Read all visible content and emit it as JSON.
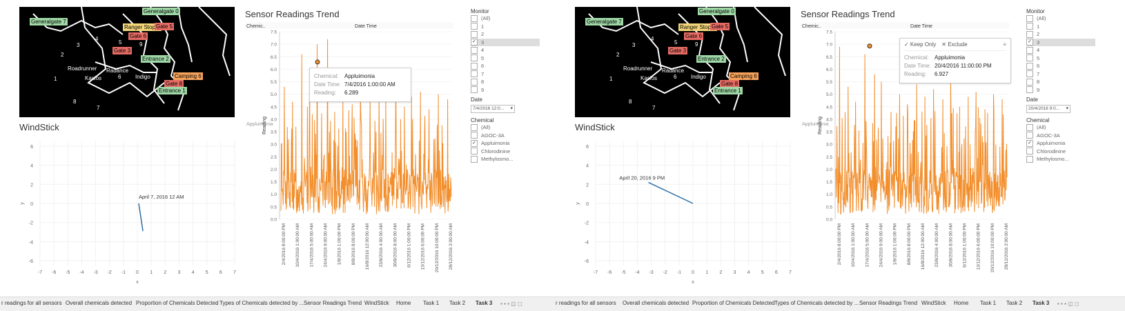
{
  "panes": [
    {
      "id": "L",
      "map": {
        "tags": [
          {
            "text": "Generalgate 7",
            "color": "green"
          },
          {
            "text": "Generalgate 0",
            "color": "green"
          },
          {
            "text": "Ranger Stop 2",
            "color": "yellow"
          },
          {
            "text": "Gate 5",
            "color": "red"
          },
          {
            "text": "Gate 6",
            "color": "red"
          },
          {
            "text": "Gate 3",
            "color": "red"
          },
          {
            "text": "Entrance 2",
            "color": "green"
          },
          {
            "text": "Camping 6",
            "color": "orange"
          },
          {
            "text": "Gate 8",
            "color": "red"
          },
          {
            "text": "Entrance 1",
            "color": "green"
          }
        ],
        "labels": [
          "Roadrunner",
          "Radance",
          "Kasios",
          "Indigo"
        ],
        "sensors": [
          "1",
          "2",
          "3",
          "4",
          "5",
          "6",
          "7",
          "8",
          "9"
        ]
      },
      "windstick": {
        "title": "WindStick",
        "annotation": "April 7, 2016 12 AM",
        "x_ticks": [
          "-7",
          "-6",
          "-5",
          "-4",
          "-3",
          "-2",
          "-1",
          "0",
          "1",
          "2",
          "3",
          "4",
          "5",
          "6",
          "7"
        ],
        "y_ticks": [
          "6",
          "4",
          "2",
          "0",
          "-2",
          "-4",
          "-6"
        ],
        "xlabel": "x",
        "ylabel": "y"
      },
      "trend": {
        "title": "Sensor Readings Trend",
        "col_chem": "Chemic..",
        "col_date": "Date Time",
        "row_label": "Appluimonia",
        "ylabel": "Reading",
        "tooltip": {
          "chemical": "Appluimonia",
          "date_time": "7/4/2016 1:00:00 AM",
          "reading": "6.289"
        }
      },
      "filters": {
        "monitor_title": "Monitor",
        "monitor_items": [
          "(All)",
          "1",
          "2",
          "3",
          "4",
          "5",
          "6",
          "7",
          "8",
          "9"
        ],
        "monitor_selected": "3",
        "date_title": "Date",
        "date_value": "7/4/2016 12:0...",
        "chemical_title": "Chemical",
        "chemical_items": [
          "(All)",
          "AGOC-3A",
          "Appluimonia",
          "Chlorodinine",
          "Methylosmo..."
        ],
        "chemical_selected": "Appluimonia"
      }
    },
    {
      "id": "R",
      "map": {
        "tags": [
          {
            "text": "Generalgate 7",
            "color": "green"
          },
          {
            "text": "Generalgate 0",
            "color": "green"
          },
          {
            "text": "Ranger Stop 2",
            "color": "yellow"
          },
          {
            "text": "Gate 5",
            "color": "red"
          },
          {
            "text": "Gate 6",
            "color": "red"
          },
          {
            "text": "Gate 3",
            "color": "red"
          },
          {
            "text": "Entrance 2",
            "color": "green"
          },
          {
            "text": "Camping 6",
            "color": "orange"
          },
          {
            "text": "Gate 8",
            "color": "red"
          },
          {
            "text": "Entrance 1",
            "color": "green"
          }
        ],
        "labels": [
          "Roadrunner",
          "Radance",
          "Kasios",
          "Indigo"
        ],
        "sensors": [
          "1",
          "2",
          "3",
          "4",
          "5",
          "6",
          "7",
          "8",
          "9"
        ]
      },
      "windstick": {
        "title": "WindStick",
        "annotation": "April 20, 2016 9 PM",
        "x_ticks": [
          "-7",
          "-6",
          "-5",
          "-4",
          "-3",
          "-2",
          "-1",
          "0",
          "1",
          "2",
          "3",
          "4",
          "5",
          "6",
          "7"
        ],
        "y_ticks": [
          "6",
          "4",
          "2",
          "0",
          "-2",
          "-4",
          "-6"
        ],
        "xlabel": "x",
        "ylabel": "y"
      },
      "trend": {
        "title": "Sensor Readings Trend",
        "col_chem": "Chemic..",
        "col_date": "Date Time",
        "row_label": "Appluimonia",
        "ylabel": "Reading",
        "tooltip": {
          "chemical": "Appluimonia",
          "date_time": "20/4/2016 11:00:00 PM",
          "reading": "6.927",
          "keep_only": "✓ Keep Only",
          "exclude": "✕ Exclude"
        }
      },
      "filters": {
        "monitor_title": "Monitor",
        "monitor_items": [
          "(All)",
          "1",
          "2",
          "3",
          "4",
          "5",
          "6",
          "7",
          "8",
          "9"
        ],
        "monitor_selected": "3",
        "date_title": "Date",
        "date_value": "20/4/2016 9:0...",
        "chemical_title": "Chemical",
        "chemical_items": [
          "(All)",
          "AGOC-3A",
          "Appluimonia",
          "Chlorodinine",
          "Methylosmo..."
        ],
        "chemical_selected": "Appluimonia"
      }
    }
  ],
  "tooltip_labels": {
    "chemical": "Chemical:",
    "date_time": "Date Time:",
    "reading": "Reading:"
  },
  "chart_data": [
    {
      "type": "line",
      "title": "Sensor Readings Trend",
      "xlabel": "Date Time",
      "ylabel": "Reading",
      "ylim": [
        0,
        7.5
      ],
      "y_ticks": [
        0.0,
        0.5,
        1.0,
        1.5,
        2.0,
        2.5,
        3.0,
        3.5,
        4.0,
        4.5,
        5.0,
        5.5,
        6.0,
        6.5,
        7.0,
        7.5
      ],
      "x_ticks": [
        "2/4/2016 8:00:00 PM",
        "10/4/2016 1:00:00 AM",
        "17/4/2016 5:00:00 AM",
        "24/4/2016 9:00:00 AM",
        "1/8/2016 1:00:00 PM",
        "8/8/2016 8:00:00 PM",
        "16/8/2016 12:00:00 AM",
        "23/8/2016 4:00:00 AM",
        "30/8/2016 8:00:00 AM",
        "6/12/2016 1:00:00 PM",
        "13/12/2016 6:00:00 PM",
        "20/12/2016 10:00:00 PM",
        "28/12/2016 2:00:00 AM"
      ],
      "series": [
        {
          "name": "Appluimonia",
          "color": "#f28e2b",
          "peaks": [
            5.3,
            4.7,
            6.6,
            5.8,
            7.0,
            7.2,
            4.3,
            5.0,
            4.6,
            5.4,
            4.9,
            5.2,
            4.8,
            5.6,
            4.5,
            4.9,
            5.1,
            4.4,
            5.0,
            4.8
          ],
          "typical_range": [
            0.2,
            2.0
          ]
        }
      ],
      "highlight": {
        "date_time": "7/4/2016 1:00:00 AM",
        "reading": 6.289
      }
    },
    {
      "type": "line",
      "title": "Sensor Readings Trend",
      "xlabel": "Date Time",
      "ylabel": "Reading",
      "ylim": [
        0,
        7.5
      ],
      "y_ticks": [
        0.0,
        0.5,
        1.0,
        1.5,
        2.0,
        2.5,
        3.0,
        3.5,
        4.0,
        4.5,
        5.0,
        5.5,
        6.0,
        6.5,
        7.0,
        7.5
      ],
      "x_ticks": [
        "2/4/2016 8:00:00 PM",
        "10/4/2016 1:00:00 AM",
        "17/4/2016 5:00:00 AM",
        "24/4/2016 9:00:00 AM",
        "1/8/2016 1:00:00 PM",
        "8/8/2016 8:00:00 PM",
        "16/8/2016 12:00:00 AM",
        "23/8/2016 4:00:00 AM",
        "30/8/2016 8:00:00 AM",
        "6/12/2016 1:00:00 PM",
        "13/12/2016 6:00:00 PM",
        "20/12/2016 10:00:00 PM",
        "28/12/2016 2:00:00 AM"
      ],
      "series": [
        {
          "name": "Appluimonia",
          "color": "#f28e2b",
          "peaks": [
            6.9,
            5.3,
            4.7,
            6.6,
            5.8,
            5.5,
            4.3,
            5.0,
            4.6,
            5.4,
            4.9,
            5.2,
            4.8,
            5.6,
            4.5,
            4.9,
            5.1,
            4.4,
            5.0,
            4.8
          ],
          "typical_range": [
            0.2,
            2.0
          ]
        }
      ],
      "highlight": {
        "date_time": "20/4/2016 11:00:00 PM",
        "reading": 6.927
      }
    }
  ],
  "tabs": [
    "r readings for all sensors",
    "Overall chemicals detected",
    "Proportion of Chemicals Detected",
    "Types of Chemicals detected by ...",
    "Sensor Readings Trend",
    "WindStick",
    "Home",
    "Task 1",
    "Task 2",
    "Task 3"
  ],
  "active_tab": "Task 3",
  "colors": {
    "line": "#f28e2b",
    "map_bg": "#000000",
    "grid": "#eeeeee"
  }
}
